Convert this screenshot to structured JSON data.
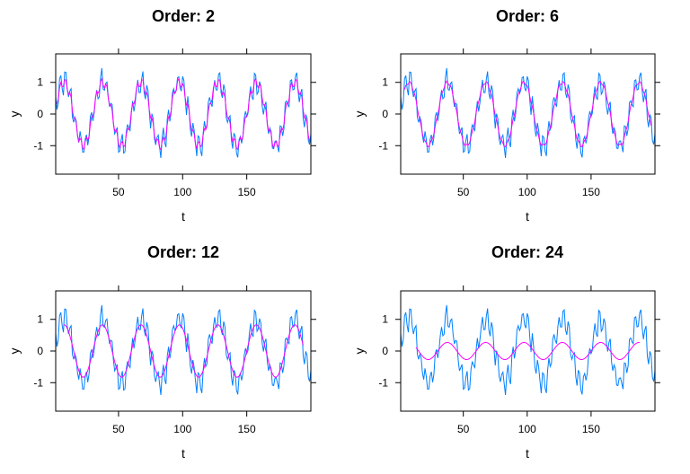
{
  "colors": {
    "raw_series": "#0080ff",
    "smoothed_series": "#ff00ff",
    "frame": "#000000"
  },
  "chart_data": [
    {
      "type": "line",
      "title": "Order: 2",
      "xlabel": "t",
      "ylabel": "y",
      "xlim": [
        1,
        200
      ],
      "ylim": [
        -1.9,
        1.9
      ],
      "xticks": [
        50,
        100,
        150
      ],
      "yticks": [
        -1,
        0,
        1
      ],
      "grid": false,
      "series": [
        {
          "role": "raw",
          "color": "#0080ff",
          "model": "sin(2*pi*t/30) + 0.35*sin(2*pi*t/4) + noise"
        },
        {
          "role": "smoothed",
          "color": "#ff00ff",
          "amplitude": 1.0,
          "ripple": 0.15,
          "valid_from": 2,
          "valid_to": 199
        }
      ]
    },
    {
      "type": "line",
      "title": "Order: 6",
      "xlabel": "t",
      "ylabel": "y",
      "xlim": [
        1,
        200
      ],
      "ylim": [
        -1.9,
        1.9
      ],
      "xticks": [
        50,
        100,
        150
      ],
      "yticks": [
        -1,
        0,
        1
      ],
      "grid": false,
      "series": [
        {
          "role": "raw",
          "color": "#0080ff",
          "model": "sin(2*pi*t/30) + 0.35*sin(2*pi*t/4) + noise"
        },
        {
          "role": "smoothed",
          "color": "#ff00ff",
          "amplitude": 1.0,
          "ripple": 0.05,
          "valid_from": 4,
          "valid_to": 197
        }
      ]
    },
    {
      "type": "line",
      "title": "Order: 12",
      "xlabel": "t",
      "ylabel": "y",
      "xlim": [
        1,
        200
      ],
      "ylim": [
        -1.9,
        1.9
      ],
      "xticks": [
        50,
        100,
        150
      ],
      "yticks": [
        -1,
        0,
        1
      ],
      "grid": false,
      "series": [
        {
          "role": "raw",
          "color": "#0080ff",
          "model": "sin(2*pi*t/30) + 0.35*sin(2*pi*t/4) + noise"
        },
        {
          "role": "smoothed",
          "color": "#ff00ff",
          "amplitude": 0.83,
          "ripple": 0.0,
          "valid_from": 7,
          "valid_to": 194
        }
      ]
    },
    {
      "type": "line",
      "title": "Order: 24",
      "xlabel": "t",
      "ylabel": "y",
      "xlim": [
        1,
        200
      ],
      "ylim": [
        -1.9,
        1.9
      ],
      "xticks": [
        50,
        100,
        150
      ],
      "yticks": [
        -1,
        0,
        1
      ],
      "grid": false,
      "series": [
        {
          "role": "raw",
          "color": "#0080ff",
          "model": "sin(2*pi*t/30) + 0.35*sin(2*pi*t/4) + noise"
        },
        {
          "role": "smoothed",
          "color": "#ff00ff",
          "amplitude": 0.27,
          "ripple": 0.0,
          "valid_from": 13,
          "valid_to": 188
        }
      ]
    }
  ]
}
